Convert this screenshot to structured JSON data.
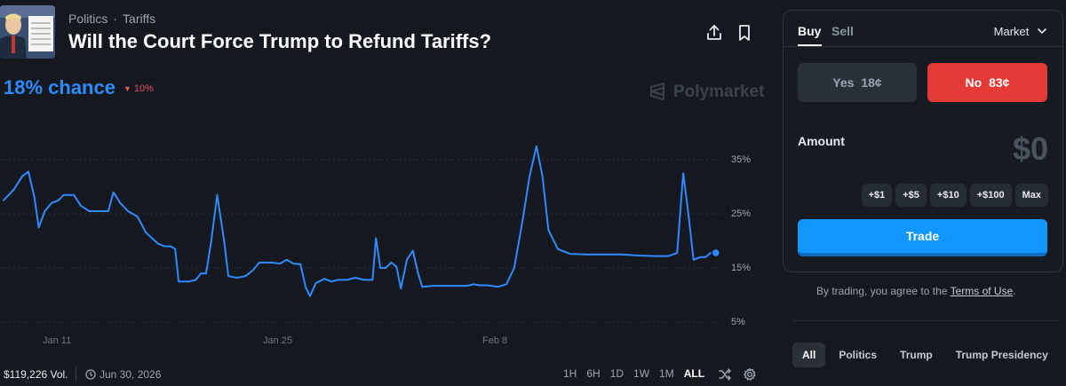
{
  "header": {
    "category": "Politics",
    "subcategory": "Tariffs",
    "title": "Will the Court Force Trump to Refund Tariffs?",
    "share_icon": "share-icon",
    "bookmark_icon": "bookmark-icon"
  },
  "summary": {
    "chance": "18% chance",
    "change": "10%",
    "change_color": "#e0555b",
    "accent": "#2e8bff",
    "brand": "Polymarket"
  },
  "chart_data": {
    "type": "line",
    "x_ticks": [
      "Jan 11",
      "Jan 25",
      "Feb 8"
    ],
    "y_ticks": [
      "35%",
      "25%",
      "15%",
      "5%"
    ],
    "ylim": [
      5,
      40
    ],
    "grid": true,
    "series": [
      {
        "color": "#2e8bff",
        "points": [
          [
            0,
            27.5
          ],
          [
            1.2,
            29.5
          ],
          [
            2.2,
            32.0
          ],
          [
            2.9,
            32.8
          ],
          [
            3.6,
            28
          ],
          [
            4.1,
            22.5
          ],
          [
            4.8,
            25.5
          ],
          [
            5.6,
            27
          ],
          [
            6.4,
            27.5
          ],
          [
            7,
            28.5
          ],
          [
            8.2,
            28.5
          ],
          [
            9,
            26.5
          ],
          [
            10,
            25.5
          ],
          [
            11,
            25.5
          ],
          [
            12.2,
            25.5
          ],
          [
            12.8,
            29
          ],
          [
            13.6,
            27
          ],
          [
            14.5,
            25.5
          ],
          [
            15.6,
            24.5
          ],
          [
            16.6,
            21.5
          ],
          [
            17.3,
            20.5
          ],
          [
            18,
            19.5
          ],
          [
            18.8,
            19.0
          ],
          [
            19.5,
            19.0
          ],
          [
            20,
            18.5
          ],
          [
            20.4,
            12.5
          ],
          [
            21.6,
            12.5
          ],
          [
            22.4,
            12.8
          ],
          [
            23,
            14.0
          ],
          [
            23.6,
            14.0
          ],
          [
            24.2,
            20
          ],
          [
            24.9,
            28.5
          ],
          [
            25.7,
            20
          ],
          [
            26.2,
            13.5
          ],
          [
            27.2,
            13.2
          ],
          [
            28.2,
            13.5
          ],
          [
            29,
            14.5
          ],
          [
            29.8,
            16.0
          ],
          [
            31.3,
            16.0
          ],
          [
            32.2,
            15.8
          ],
          [
            33,
            16.5
          ],
          [
            33.8,
            15.8
          ],
          [
            34.6,
            15.7
          ],
          [
            35.2,
            11.5
          ],
          [
            35.7,
            9.8
          ],
          [
            36.4,
            12.2
          ],
          [
            37.4,
            13.0
          ],
          [
            38.2,
            12.5
          ],
          [
            39,
            12.8
          ],
          [
            40,
            12.8
          ],
          [
            41,
            13.2
          ],
          [
            42,
            12.8
          ],
          [
            43,
            12.8
          ],
          [
            43.4,
            20.5
          ],
          [
            43.9,
            15
          ],
          [
            44.5,
            15
          ],
          [
            45.2,
            16.0
          ],
          [
            45.8,
            15.2
          ],
          [
            46.3,
            11.2
          ],
          [
            47,
            16.5
          ],
          [
            47.7,
            18.2
          ],
          [
            48.3,
            14
          ],
          [
            48.8,
            11.5
          ],
          [
            50,
            11.7
          ],
          [
            52,
            11.7
          ],
          [
            54,
            11.7
          ],
          [
            54.8,
            12.0
          ],
          [
            55.4,
            11.8
          ],
          [
            56.4,
            11.8
          ],
          [
            57.6,
            11.5
          ],
          [
            58.6,
            12.0
          ],
          [
            59.5,
            15
          ],
          [
            60.4,
            23
          ],
          [
            61.3,
            32
          ],
          [
            62.1,
            37.5
          ],
          [
            62.8,
            32
          ],
          [
            63.5,
            22
          ],
          [
            64.6,
            18.5
          ],
          [
            66,
            17.6
          ],
          [
            68,
            17.5
          ],
          [
            70,
            17.5
          ],
          [
            72,
            17.5
          ],
          [
            74,
            17.3
          ],
          [
            76,
            17.2
          ],
          [
            77.5,
            17.2
          ],
          [
            78.5,
            17.8
          ],
          [
            79.2,
            32.5
          ],
          [
            79.8,
            25
          ],
          [
            80.4,
            16.5
          ],
          [
            81.2,
            17.0
          ],
          [
            81.8,
            17.0
          ],
          [
            82.4,
            17.8
          ],
          [
            83,
            17.8
          ]
        ]
      }
    ],
    "end_value_pct": 18,
    "x_range_days": [
      0,
      88
    ]
  },
  "footer": {
    "volume": "$119,226 Vol.",
    "end_date": "Jun 30, 2026",
    "ranges": [
      "1H",
      "6H",
      "1D",
      "1W",
      "1M",
      "ALL"
    ],
    "active_range": "ALL"
  },
  "trade_panel": {
    "tab_buy": "Buy",
    "tab_sell": "Sell",
    "order_type": "Market",
    "yes_label": "Yes",
    "yes_price": "18¢",
    "no_label": "No",
    "no_price": "83¢",
    "amount_label": "Amount",
    "amount_value": "$0",
    "chips": [
      "+$1",
      "+$5",
      "+$10",
      "+$100",
      "Max"
    ],
    "trade_button": "Trade",
    "colors": {
      "yes_bg": "#2a3038",
      "no_bg": "#e53935",
      "trade_bg": "#1296ff"
    }
  },
  "terms": {
    "prefix": "By trading, you agree to the",
    "link": "Terms of Use",
    "suffix": "."
  },
  "categories": {
    "items": [
      "All",
      "Politics",
      "Trump",
      "Trump Presidency"
    ],
    "active": "All"
  }
}
